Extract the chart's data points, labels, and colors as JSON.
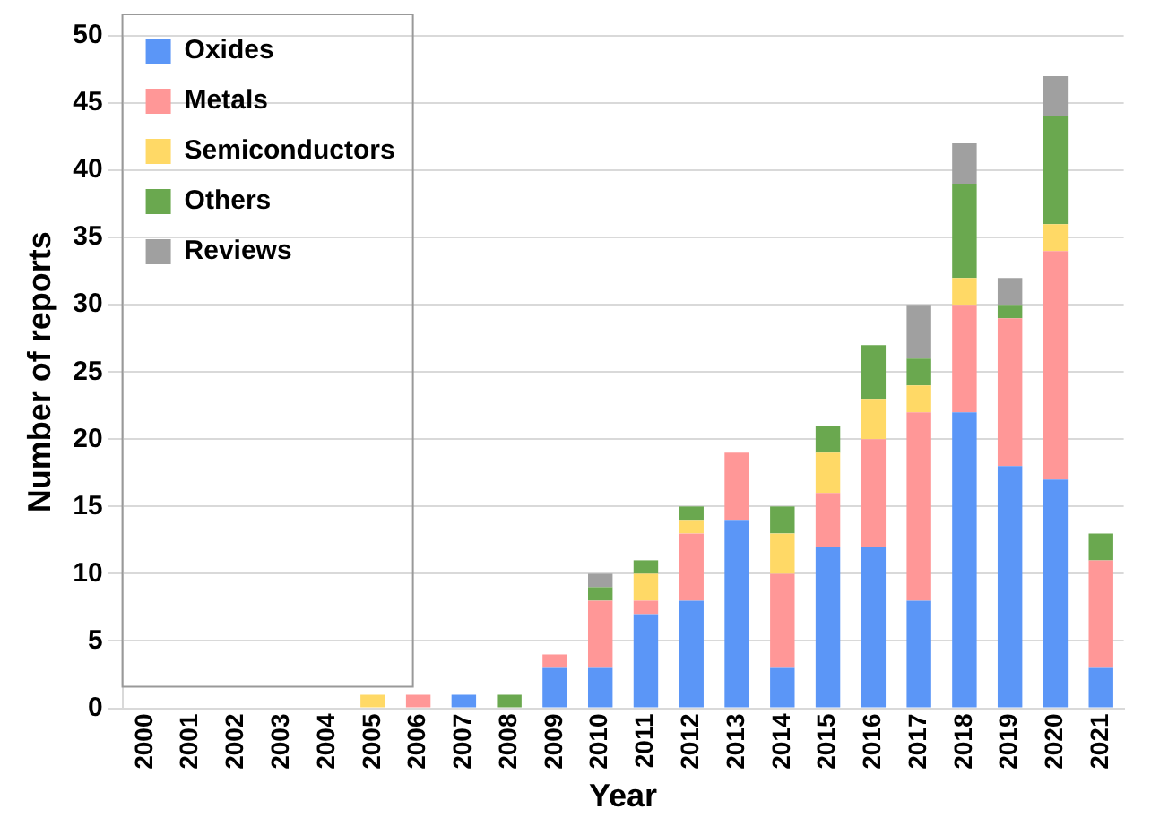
{
  "chart_data": {
    "type": "bar",
    "stacked": true,
    "xlabel": "Year",
    "ylabel": "Number of reports",
    "categories": [
      "2000",
      "2001",
      "2002",
      "2003",
      "2004",
      "2005",
      "2006",
      "2007",
      "2008",
      "2009",
      "2010",
      "2011",
      "2012",
      "2013",
      "2014",
      "2015",
      "2016",
      "2017",
      "2018",
      "2019",
      "2020",
      "2021"
    ],
    "series": [
      {
        "name": "Oxides",
        "color": "#5b96f7",
        "values": [
          0,
          0,
          0,
          0,
          0,
          0,
          0,
          1,
          0,
          3,
          3,
          7,
          8,
          14,
          3,
          12,
          12,
          8,
          22,
          18,
          17,
          3
        ]
      },
      {
        "name": "Metals",
        "color": "#ff9797",
        "values": [
          0,
          0,
          0,
          0,
          0,
          0,
          1,
          0,
          0,
          1,
          5,
          1,
          5,
          5,
          7,
          4,
          8,
          14,
          8,
          11,
          17,
          8
        ]
      },
      {
        "name": "Semiconductors",
        "color": "#ffd966",
        "values": [
          0,
          0,
          0,
          0,
          0,
          1,
          0,
          0,
          0,
          0,
          0,
          2,
          1,
          0,
          3,
          3,
          3,
          2,
          2,
          0,
          2,
          0
        ]
      },
      {
        "name": "Others",
        "color": "#6aa84f",
        "values": [
          0,
          0,
          0,
          0,
          0,
          0,
          0,
          0,
          1,
          0,
          1,
          1,
          1,
          0,
          2,
          2,
          4,
          2,
          7,
          1,
          8,
          2
        ]
      },
      {
        "name": "Reviews",
        "color": "#a0a0a0",
        "values": [
          0,
          0,
          0,
          0,
          0,
          0,
          0,
          0,
          0,
          0,
          1,
          0,
          0,
          0,
          0,
          0,
          0,
          4,
          3,
          2,
          3,
          0
        ]
      }
    ],
    "ylim": [
      0,
      50
    ],
    "yticks": [
      0,
      5,
      10,
      15,
      20,
      25,
      30,
      35,
      40,
      45,
      50
    ],
    "grid": "y",
    "legend": "top left"
  }
}
